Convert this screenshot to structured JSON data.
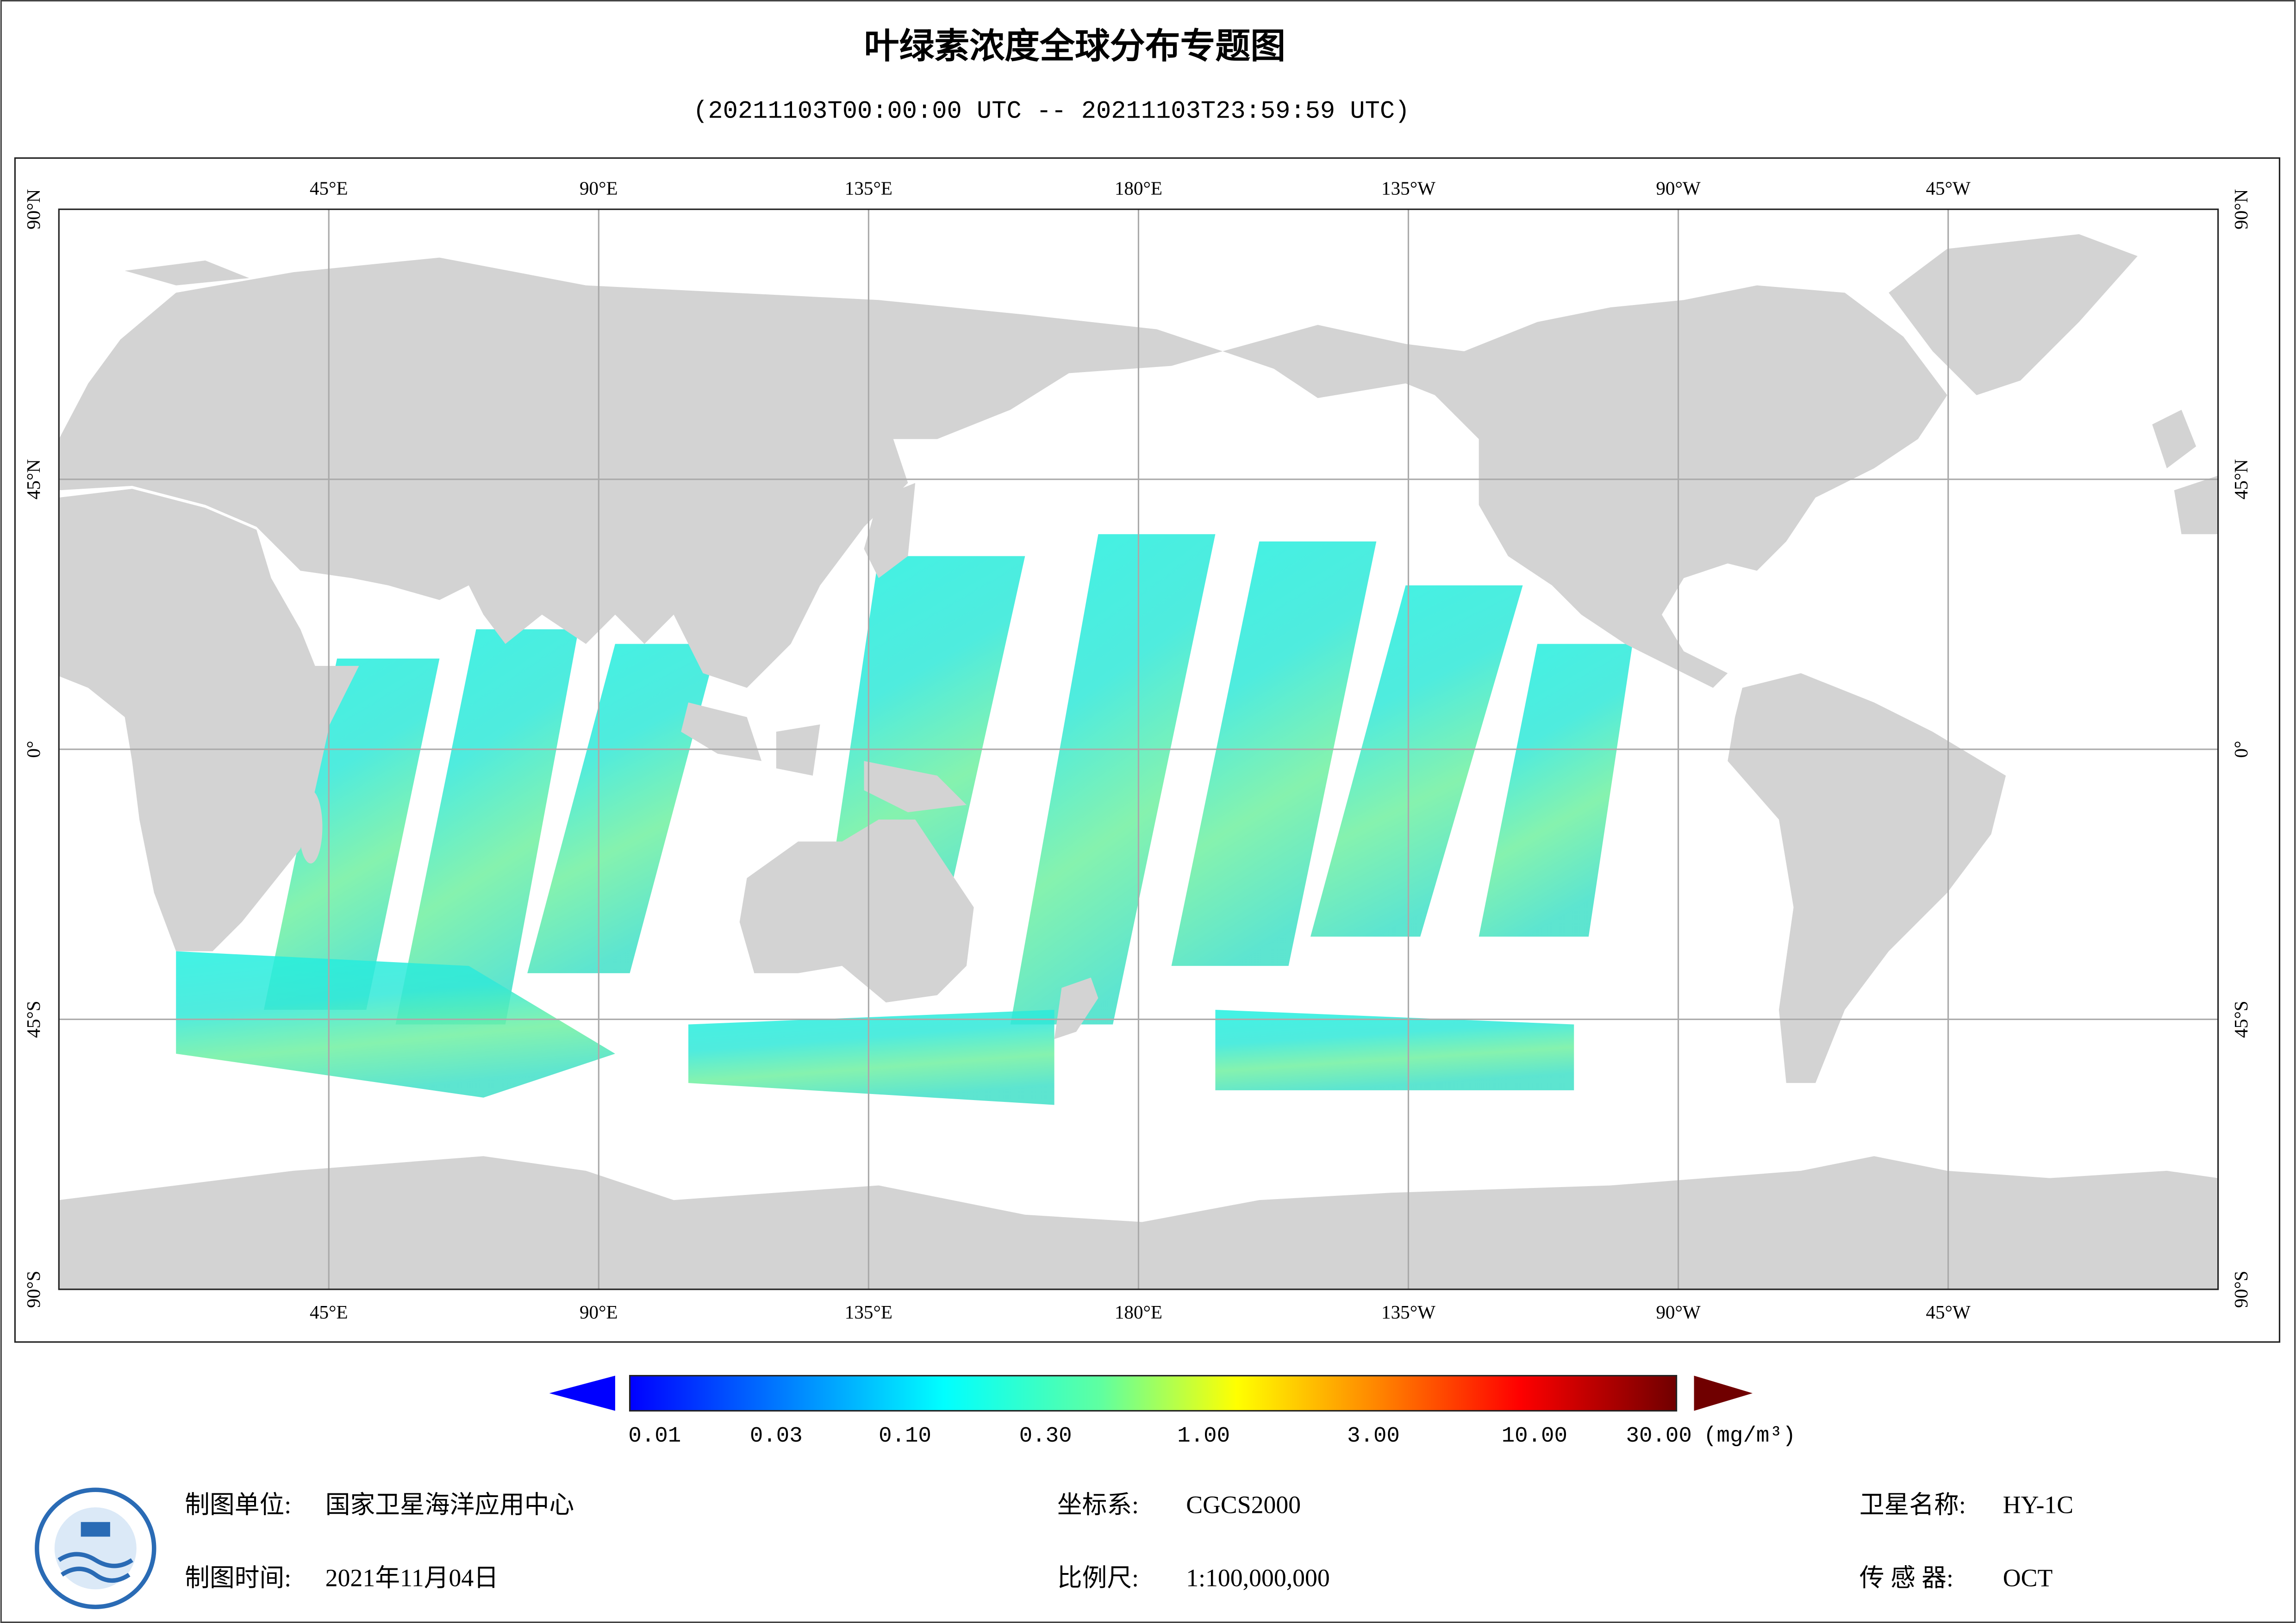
{
  "header": {
    "title": "叶绿素浓度全球分布专题图",
    "subtitle": "(20211103T00:00:00 UTC -- 20211103T23:59:59 UTC)"
  },
  "map": {
    "lon_labels": [
      "45°E",
      "90°E",
      "135°E",
      "180°E",
      "135°W",
      "90°W",
      "45°W"
    ],
    "lat_labels": [
      "90°N",
      "45°N",
      "0°",
      "45°S",
      "90°S"
    ]
  },
  "colorbar": {
    "ticks": [
      "0.01",
      "0.03",
      "0.10",
      "0.30",
      "1.00",
      "3.00",
      "10.00",
      "30.00"
    ],
    "unit": "(mg/m³)"
  },
  "footer": {
    "producer": {
      "label": "制图单位:",
      "value": "国家卫星海洋应用中心"
    },
    "date": {
      "label": "制图时间:",
      "value": "2021年11月04日"
    },
    "crs": {
      "label": "坐标系:",
      "value": "CGCS2000"
    },
    "scale": {
      "label": "比例尺:",
      "value": "1:100,000,000"
    },
    "satellite": {
      "label": "卫星名称:",
      "value": "HY-1C"
    },
    "sensor": {
      "label": "传 感 器:",
      "value": "OCT"
    }
  }
}
